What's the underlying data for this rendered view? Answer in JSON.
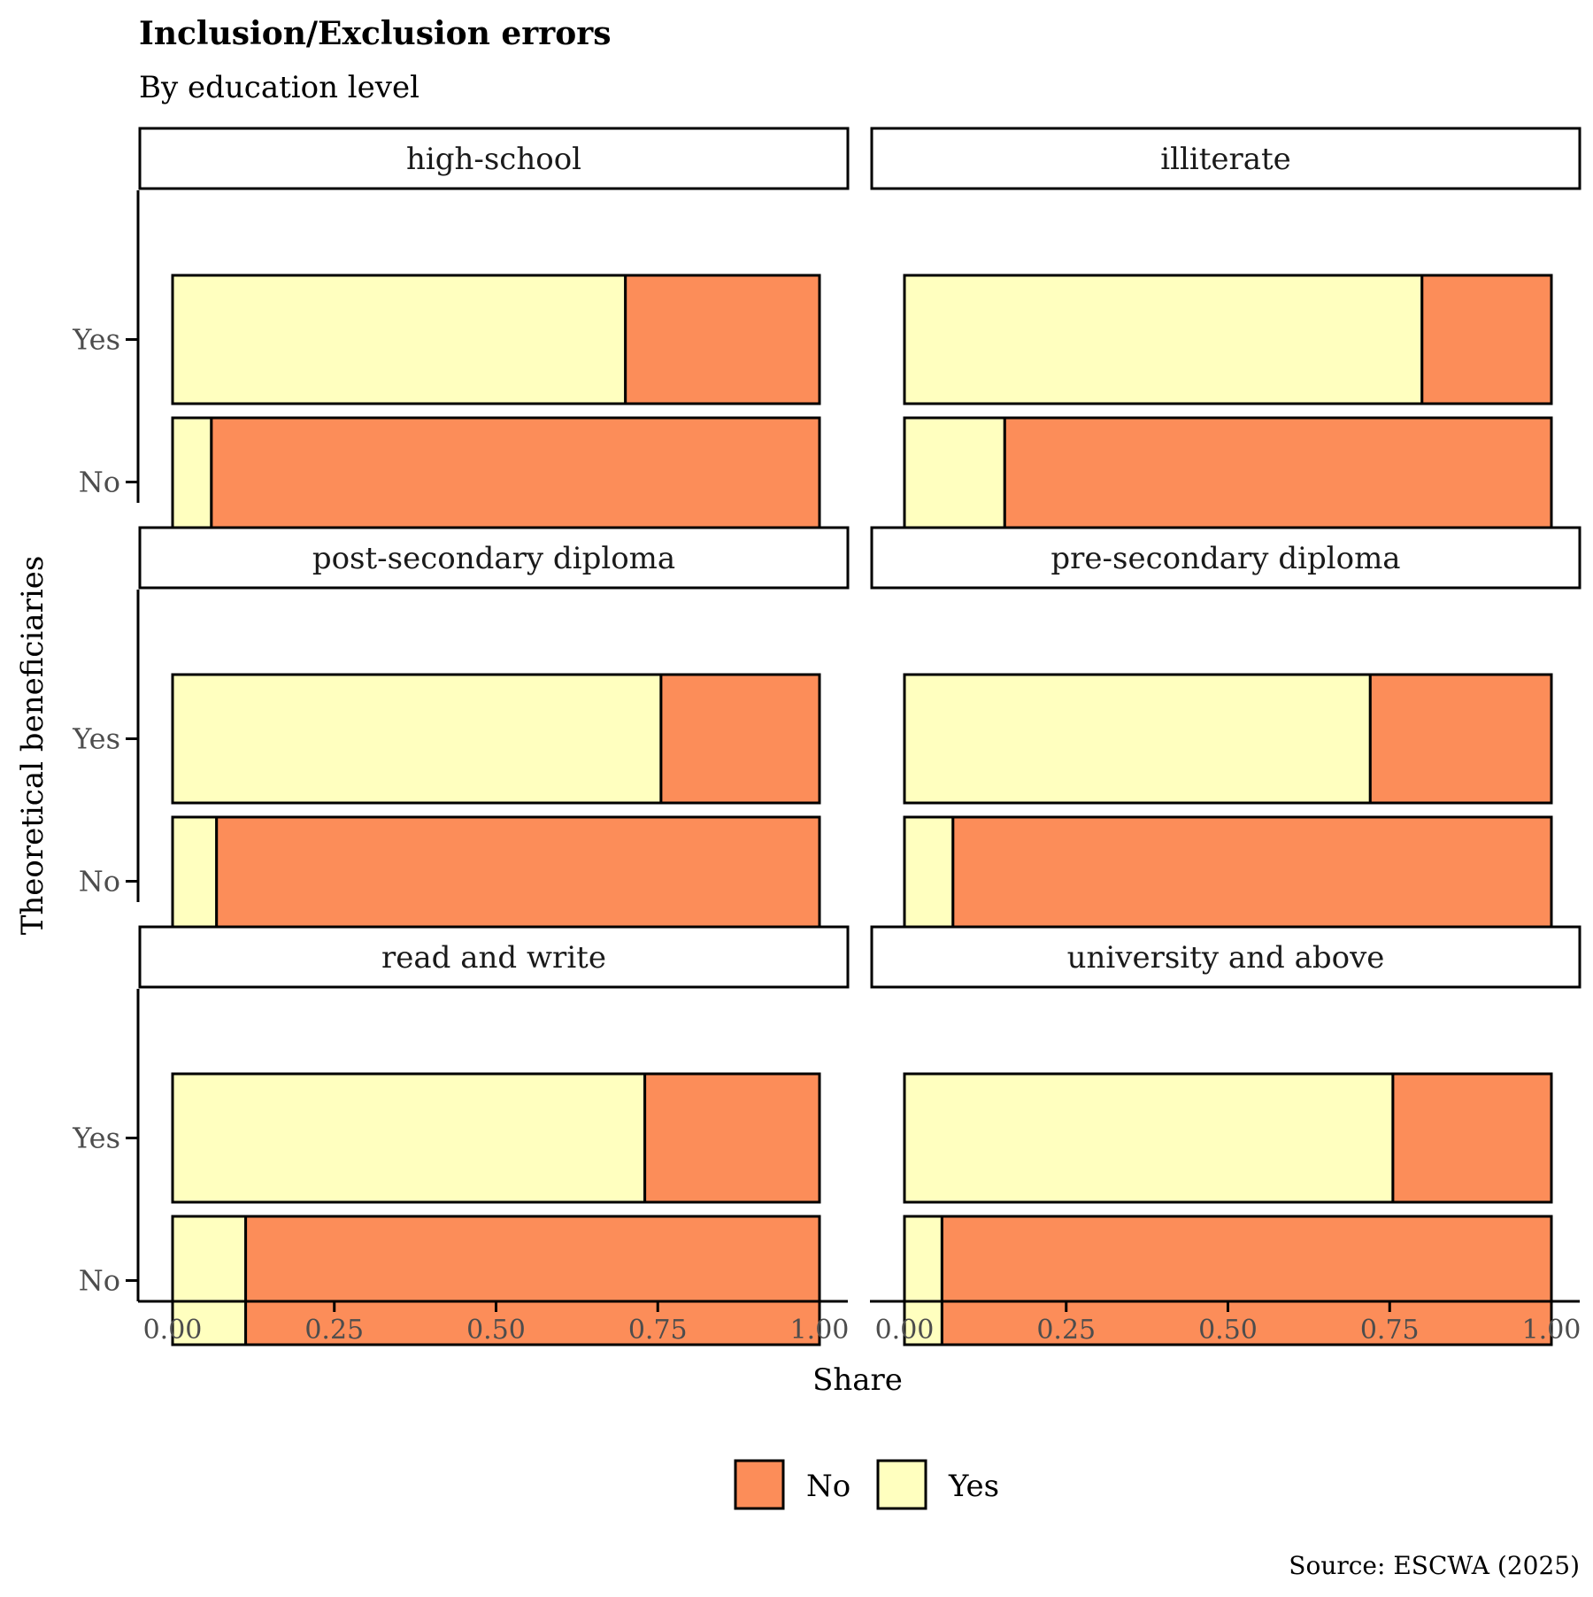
{
  "chart_data": {
    "type": "bar",
    "orientation": "horizontal",
    "stacked": true,
    "title": "Inclusion/Exclusion errors",
    "subtitle": "By education level",
    "xlabel": "Share",
    "ylabel": "Theoretical beneficiaries",
    "caption": "Source: ESCWA (2025)",
    "xlim": [
      0,
      1
    ],
    "x_ticks": [
      "0.00",
      "0.25",
      "0.50",
      "0.75",
      "1.00"
    ],
    "x_tick_values": [
      0,
      0.25,
      0.5,
      0.75,
      1
    ],
    "categories": [
      "Yes",
      "No"
    ],
    "legend": {
      "position": "bottom",
      "entries": [
        {
          "name": "No",
          "color": "#fc8d59"
        },
        {
          "name": "Yes",
          "color": "#ffffbf"
        }
      ]
    },
    "grid": false,
    "panels": [
      {
        "name": "high-school",
        "yes_share": [
          0.7,
          0.06
        ]
      },
      {
        "name": "illiterate",
        "yes_share": [
          0.8,
          0.155
        ]
      },
      {
        "name": "post-secondary diploma",
        "yes_share": [
          0.755,
          0.068
        ]
      },
      {
        "name": "pre-secondary diploma",
        "yes_share": [
          0.72,
          0.075
        ]
      },
      {
        "name": "read and write",
        "yes_share": [
          0.73,
          0.113
        ]
      },
      {
        "name": "university and above",
        "yes_share": [
          0.755,
          0.058
        ]
      }
    ]
  }
}
